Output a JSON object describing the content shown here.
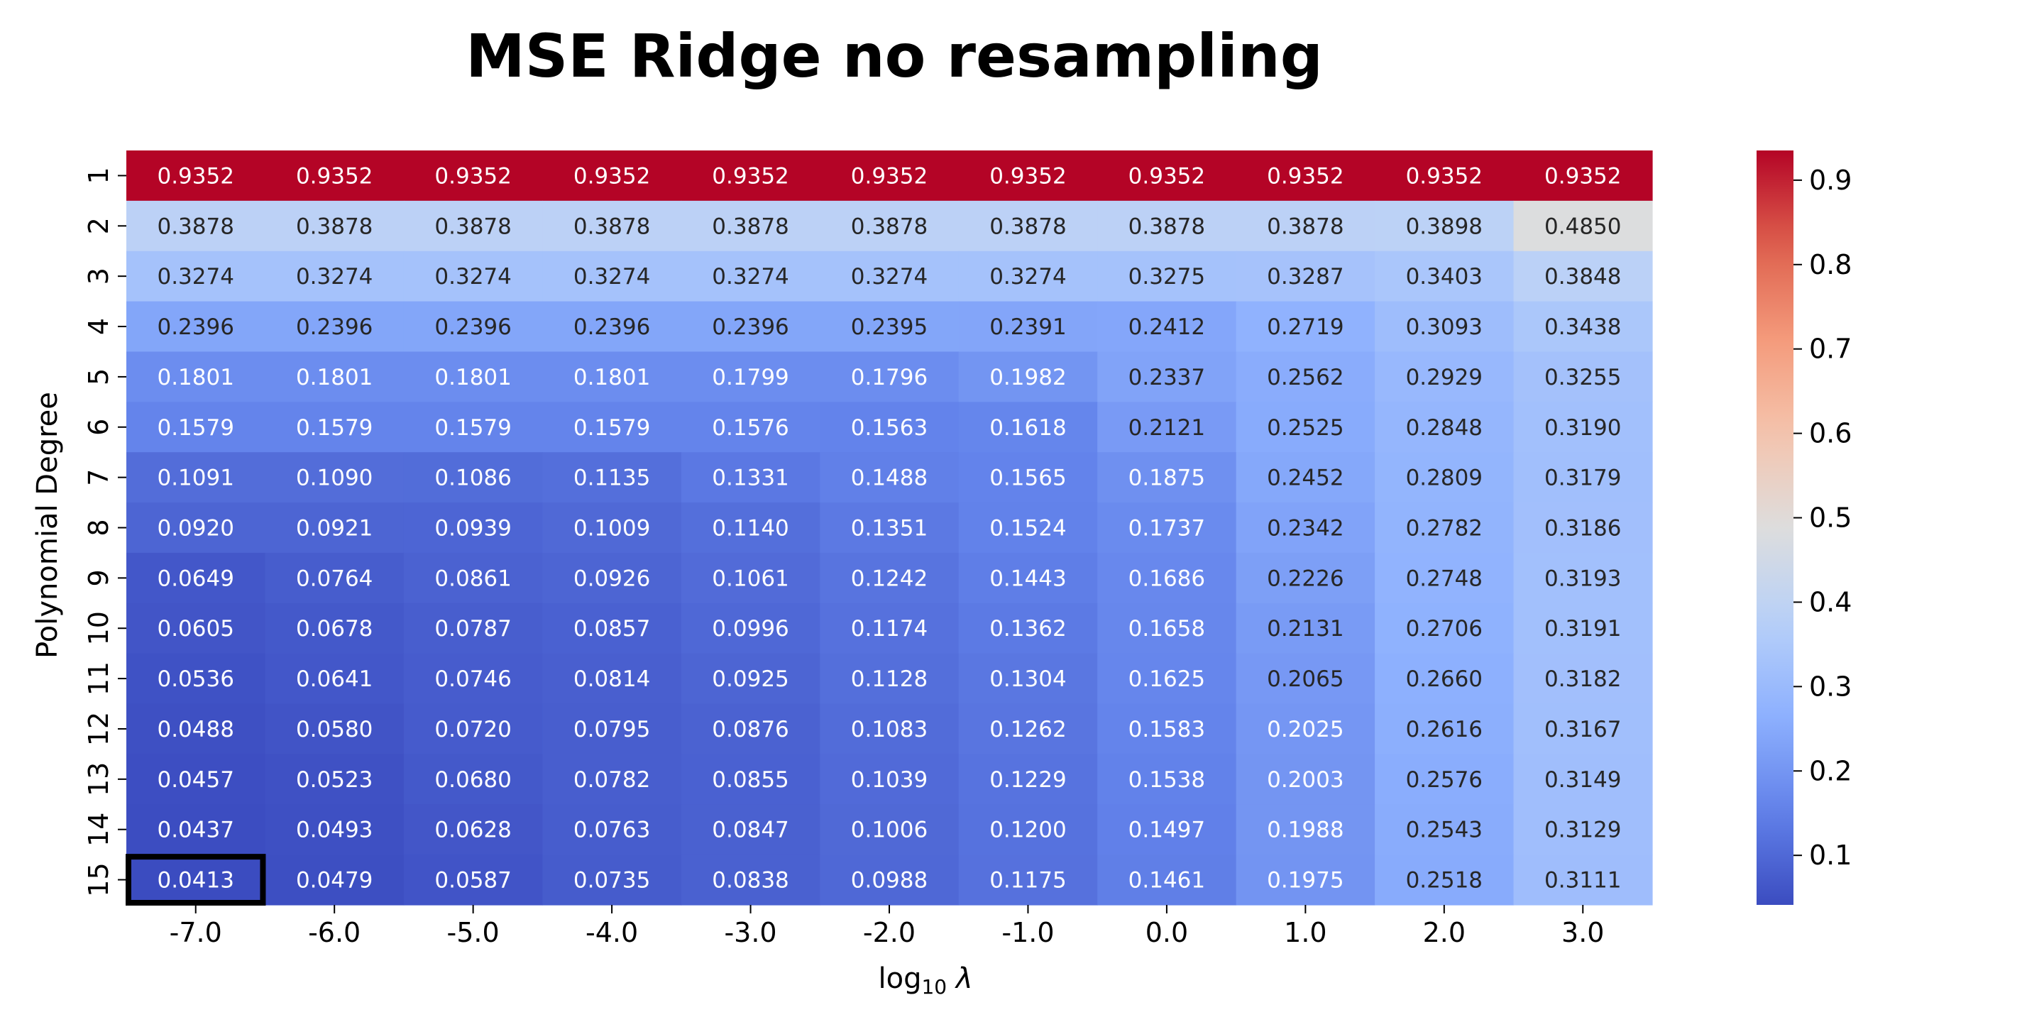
{
  "chart_data": {
    "type": "heatmap",
    "title": "MSE Ridge no resampling",
    "xlabel_base": "log",
    "xlabel_sub": "10",
    "xlabel_sym": " λ",
    "ylabel": "Polynomial Degree",
    "x": [
      "-7.0",
      "-6.0",
      "-5.0",
      "-4.0",
      "-3.0",
      "-2.0",
      "-1.0",
      "0.0",
      "1.0",
      "2.0",
      "3.0"
    ],
    "y": [
      "1",
      "2",
      "3",
      "4",
      "5",
      "6",
      "7",
      "8",
      "9",
      "10",
      "11",
      "12",
      "13",
      "14",
      "15"
    ],
    "values": [
      [
        0.9352,
        0.9352,
        0.9352,
        0.9352,
        0.9352,
        0.9352,
        0.9352,
        0.9352,
        0.9352,
        0.9352,
        0.9352
      ],
      [
        0.3878,
        0.3878,
        0.3878,
        0.3878,
        0.3878,
        0.3878,
        0.3878,
        0.3878,
        0.3878,
        0.3898,
        0.485
      ],
      [
        0.3274,
        0.3274,
        0.3274,
        0.3274,
        0.3274,
        0.3274,
        0.3274,
        0.3275,
        0.3287,
        0.3403,
        0.3848
      ],
      [
        0.2396,
        0.2396,
        0.2396,
        0.2396,
        0.2396,
        0.2395,
        0.2391,
        0.2412,
        0.2719,
        0.3093,
        0.3438
      ],
      [
        0.1801,
        0.1801,
        0.1801,
        0.1801,
        0.1799,
        0.1796,
        0.1982,
        0.2337,
        0.2562,
        0.2929,
        0.3255
      ],
      [
        0.1579,
        0.1579,
        0.1579,
        0.1579,
        0.1576,
        0.1563,
        0.1618,
        0.2121,
        0.2525,
        0.2848,
        0.319
      ],
      [
        0.1091,
        0.109,
        0.1086,
        0.1135,
        0.1331,
        0.1488,
        0.1565,
        0.1875,
        0.2452,
        0.2809,
        0.3179
      ],
      [
        0.092,
        0.0921,
        0.0939,
        0.1009,
        0.114,
        0.1351,
        0.1524,
        0.1737,
        0.2342,
        0.2782,
        0.3186
      ],
      [
        0.0649,
        0.0764,
        0.0861,
        0.0926,
        0.1061,
        0.1242,
        0.1443,
        0.1686,
        0.2226,
        0.2748,
        0.3193
      ],
      [
        0.0605,
        0.0678,
        0.0787,
        0.0857,
        0.0996,
        0.1174,
        0.1362,
        0.1658,
        0.2131,
        0.2706,
        0.3191
      ],
      [
        0.0536,
        0.0641,
        0.0746,
        0.0814,
        0.0925,
        0.1128,
        0.1304,
        0.1625,
        0.2065,
        0.266,
        0.3182
      ],
      [
        0.0488,
        0.058,
        0.072,
        0.0795,
        0.0876,
        0.1083,
        0.1262,
        0.1583,
        0.2025,
        0.2616,
        0.3167
      ],
      [
        0.0457,
        0.0523,
        0.068,
        0.0782,
        0.0855,
        0.1039,
        0.1229,
        0.1538,
        0.2003,
        0.2576,
        0.3149
      ],
      [
        0.0437,
        0.0493,
        0.0628,
        0.0763,
        0.0847,
        0.1006,
        0.12,
        0.1497,
        0.1988,
        0.2543,
        0.3129
      ],
      [
        0.0413,
        0.0479,
        0.0587,
        0.0735,
        0.0838,
        0.0988,
        0.1175,
        0.1461,
        0.1975,
        0.2518,
        0.3111
      ]
    ],
    "vmin": 0.0413,
    "vmax": 0.9352,
    "colormap": "coolwarm",
    "colorbar_ticks": [
      "0.1",
      "0.2",
      "0.3",
      "0.4",
      "0.5",
      "0.6",
      "0.7",
      "0.8",
      "0.9"
    ],
    "highlight": {
      "row": "15",
      "col": "-7.0",
      "value": 0.0413
    },
    "grid": false
  }
}
